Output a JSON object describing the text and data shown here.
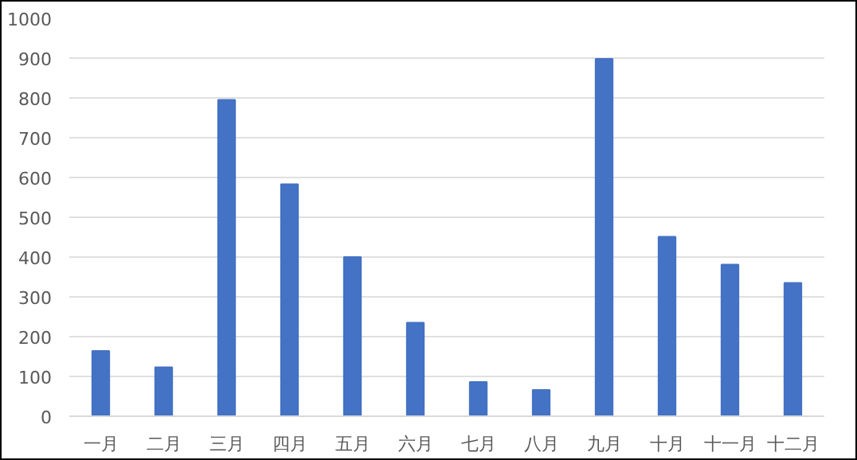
{
  "chart_data": {
    "type": "bar",
    "categories": [
      "一月",
      "二月",
      "三月",
      "四月",
      "五月",
      "六月",
      "七月",
      "八月",
      "九月",
      "十月",
      "十一月",
      "十二月"
    ],
    "values": [
      164,
      123,
      795,
      583,
      400,
      235,
      86,
      66,
      898,
      451,
      381,
      335
    ],
    "color": "#4472c4",
    "ylim": [
      0,
      1000
    ],
    "yticks": [
      0,
      100,
      200,
      300,
      400,
      500,
      600,
      700,
      800,
      900,
      1000
    ],
    "grid": "y"
  }
}
